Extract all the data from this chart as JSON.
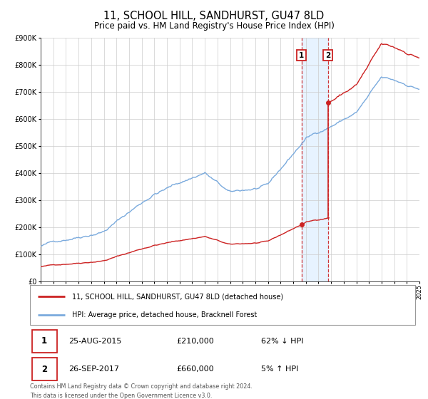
{
  "title": "11, SCHOOL HILL, SANDHURST, GU47 8LD",
  "subtitle": "Price paid vs. HM Land Registry's House Price Index (HPI)",
  "legend_line1": "11, SCHOOL HILL, SANDHURST, GU47 8LD (detached house)",
  "legend_line2": "HPI: Average price, detached house, Bracknell Forest",
  "sale1_date": "25-AUG-2015",
  "sale1_price": "£210,000",
  "sale1_hpi": "62% ↓ HPI",
  "sale1_year": 2015.65,
  "sale1_value": 210000,
  "sale2_date": "26-SEP-2017",
  "sale2_price": "£660,000",
  "sale2_hpi": "5% ↑ HPI",
  "sale2_year": 2017.75,
  "sale2_value": 660000,
  "footnote1": "Contains HM Land Registry data © Crown copyright and database right 2024.",
  "footnote2": "This data is licensed under the Open Government Licence v3.0.",
  "hpi_color": "#7aaadd",
  "price_color": "#cc2222",
  "grid_color": "#cccccc",
  "shade_color": "#ddeeff",
  "ylim": [
    0,
    900000
  ],
  "xlim_start": 1995,
  "xlim_end": 2025
}
